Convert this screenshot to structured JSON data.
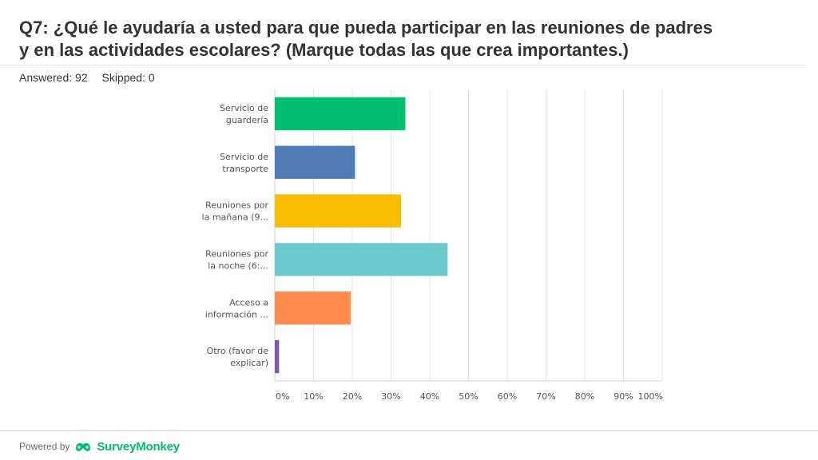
{
  "question": {
    "title": "Q7: ¿Qué le ayudaría a usted para que pueda participar en las reuniones de padres\ny en las actividades escolares? (Marque todas las que crea importantes.)",
    "answered": "Answered: 92",
    "skipped": "Skipped: 0"
  },
  "chart_data": {
    "type": "bar",
    "orientation": "horizontal",
    "categories": [
      [
        "Servicio de",
        "guardería"
      ],
      [
        "Servicio de",
        "transporte"
      ],
      [
        "Reuniones por",
        "la mañana (9..."
      ],
      [
        "Reuniones por",
        "la noche (6:..."
      ],
      [
        "Acceso a",
        "información ..."
      ],
      [
        "Otro (favor de",
        "explicar)"
      ]
    ],
    "values": [
      33.7,
      20.7,
      32.6,
      44.6,
      19.6,
      1.1
    ],
    "colors": [
      "#00bf6f",
      "#507cb6",
      "#f9be00",
      "#6bc8cd",
      "#ff8b4f",
      "#7d5ba6"
    ],
    "xticks": [
      "0%",
      "10%",
      "20%",
      "30%",
      "40%",
      "50%",
      "60%",
      "70%",
      "80%",
      "90%",
      "100%"
    ],
    "xlim": [
      0,
      100
    ],
    "grid": true,
    "title": "",
    "xlabel": "",
    "ylabel": ""
  },
  "footer": {
    "powered_by": "Powered by",
    "brand": "SurveyMonkey",
    "logo_icon": "surveymonkey-logo-icon"
  }
}
